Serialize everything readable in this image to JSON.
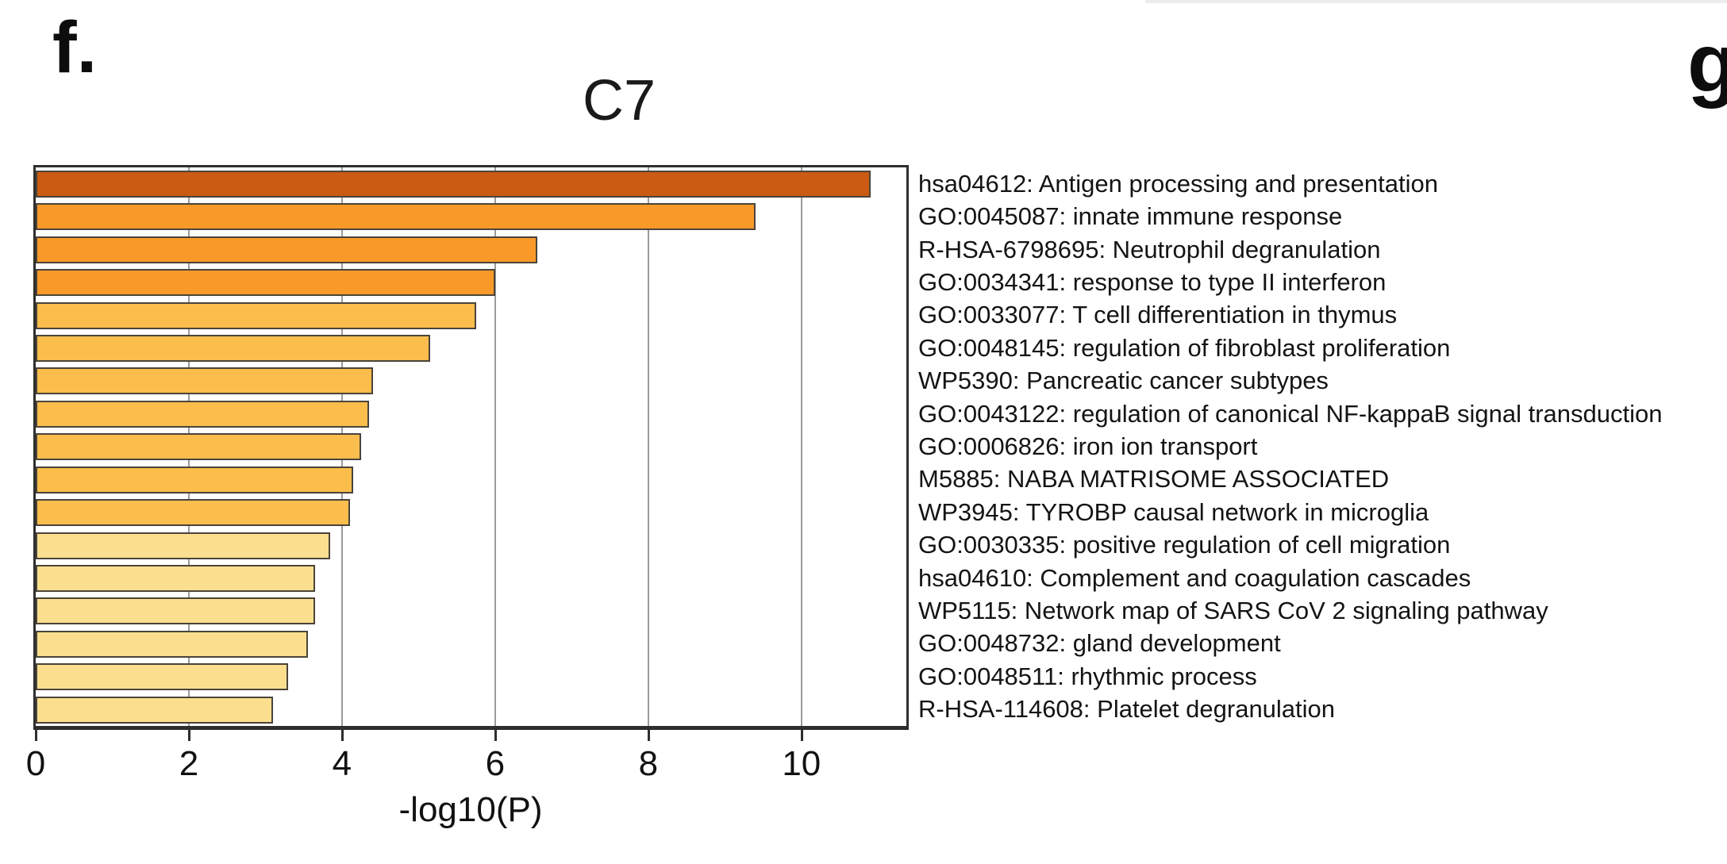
{
  "panels": {
    "f_label": "f.",
    "g_label": "g"
  },
  "chart_data": {
    "type": "bar",
    "orientation": "horizontal",
    "title": "C7",
    "xlabel": "-log10(P)",
    "xlim": [
      0,
      11.37
    ],
    "xticks": [
      0,
      2,
      4,
      6,
      8,
      10
    ],
    "grid": true,
    "categories": [
      "hsa04612: Antigen processing and presentation",
      "GO:0045087: innate immune response",
      "R-HSA-6798695: Neutrophil degranulation",
      "GO:0034341: response to type II interferon",
      "GO:0033077: T cell differentiation in thymus",
      "GO:0048145: regulation of fibroblast proliferation",
      "WP5390: Pancreatic cancer subtypes",
      "GO:0043122: regulation of canonical NF-kappaB signal transduction",
      "GO:0006826: iron ion transport",
      "M5885: NABA MATRISOME ASSOCIATED",
      "WP3945: TYROBP causal network in microglia",
      "GO:0030335: positive regulation of cell migration",
      "hsa04610: Complement and coagulation cascades",
      "WP5115: Network map of SARS CoV 2 signaling pathway",
      "GO:0048732: gland development",
      "GO:0048511: rhythmic process",
      "R-HSA-114608: Platelet degranulation"
    ],
    "values": [
      10.9,
      9.4,
      6.55,
      6.0,
      5.75,
      5.15,
      4.4,
      4.35,
      4.25,
      4.15,
      4.1,
      3.85,
      3.65,
      3.65,
      3.55,
      3.3,
      3.1
    ],
    "bar_colors": [
      "#cb5a13",
      "#f8992a",
      "#f8992a",
      "#f8992a",
      "#fbbd4c",
      "#fbbd4c",
      "#fbbd4c",
      "#fbbd4c",
      "#fbbd4c",
      "#fbbd4c",
      "#fbbd4c",
      "#fbdf8f",
      "#fbdf8f",
      "#fbdf8f",
      "#fbdf8f",
      "#fbdf8f",
      "#fbdf8f"
    ],
    "bar_edge_color": "#4a443a",
    "grid_color": "#9b9b9b",
    "frame_color": "#2e2e2e"
  }
}
